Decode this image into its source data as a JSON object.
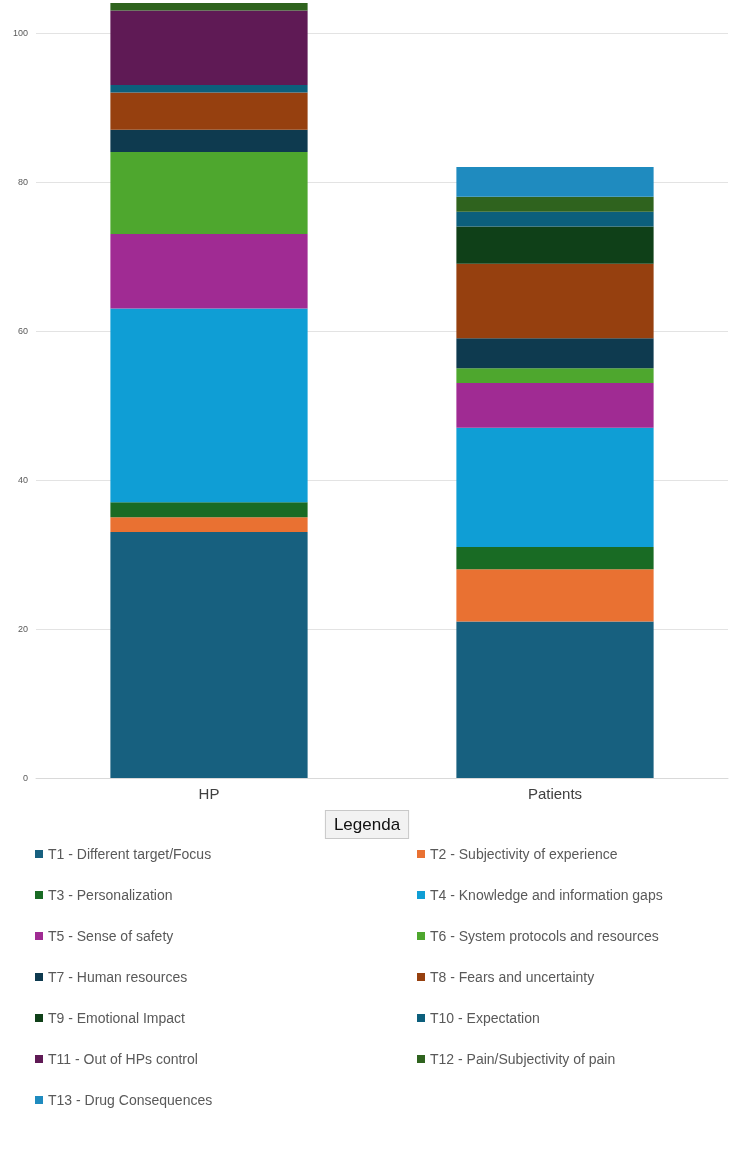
{
  "chart_data": {
    "type": "bar",
    "stacked": true,
    "categories": [
      "HP",
      "Patients"
    ],
    "legend_title": "Legenda",
    "legend": "bottom",
    "grid": "y",
    "ylim": [
      0,
      104
    ],
    "yticks": [
      0,
      20,
      40,
      60,
      80,
      100
    ],
    "series": [
      {
        "name": "T1 - Different target/Focus",
        "color": "#17607f",
        "values": [
          33,
          21
        ]
      },
      {
        "name": "T2 - Subjectivity of experience",
        "color": "#e97132",
        "values": [
          2,
          7
        ]
      },
      {
        "name": "T3 - Personalization",
        "color": "#196b24",
        "values": [
          2,
          3
        ]
      },
      {
        "name": "T4 - Knowledge and information gaps",
        "color": "#0f9ed5",
        "values": [
          26,
          16
        ]
      },
      {
        "name": "T5 - Sense of safety",
        "color": "#a02b93",
        "values": [
          10,
          6
        ]
      },
      {
        "name": "T6 - System protocols and resources",
        "color": "#4ea72e",
        "values": [
          11,
          2
        ]
      },
      {
        "name": "T7 - Human resources",
        "color": "#0e3a4f",
        "values": [
          3,
          4
        ]
      },
      {
        "name": "T8 - Fears and uncertainty",
        "color": "#96400f",
        "values": [
          5,
          10
        ]
      },
      {
        "name": "T9 - Emotional Impact",
        "color": "#0f4018",
        "values": [
          0,
          5
        ]
      },
      {
        "name": "T10 - Expectation",
        "color": "#0c5f7c",
        "values": [
          1,
          2
        ]
      },
      {
        "name": "T11 - Out of HPs control",
        "color": "#5f1a55",
        "values": [
          10,
          0
        ]
      },
      {
        "name": "T12 - Pain/Subjectivity of pain",
        "color": "#2f631e",
        "values": [
          1,
          2
        ]
      },
      {
        "name": "T13 - Drug Consequences",
        "color": "#1f8bbf",
        "values": [
          0,
          4
        ]
      }
    ]
  }
}
